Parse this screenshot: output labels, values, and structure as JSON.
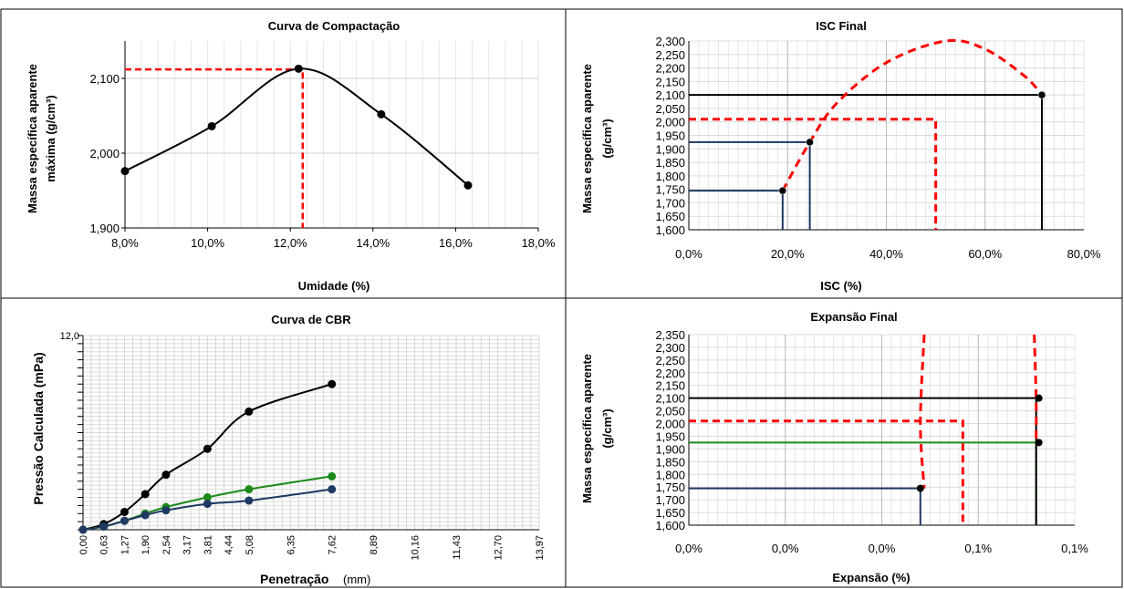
{
  "chart_data": [
    {
      "type": "line",
      "title": "Curva de Compactação",
      "xlabel": "Umidade (%)",
      "ylabel_lines": [
        "Massa específica aparente",
        "máxima  (g/cm³)"
      ],
      "xlim": [
        0.08,
        0.18
      ],
      "ylim": [
        1.9,
        2.15
      ],
      "xticks": [
        "8,0%",
        "10,0%",
        "12,0%",
        "14,0%",
        "16,0%",
        "18,0%"
      ],
      "yticks": [
        "1,900",
        "2,000",
        "2,100"
      ],
      "series": [
        {
          "x": [
            0.08,
            0.101,
            0.122,
            0.142,
            0.163
          ],
          "y": [
            1.976,
            2.036,
            2.113,
            2.052,
            1.957
          ],
          "color": "#000000"
        }
      ],
      "reference": {
        "x": 0.123,
        "y": 2.112,
        "color": "#ff0000"
      }
    },
    {
      "type": "line",
      "title": "ISC Final",
      "xlabel": "ISC (%)",
      "ylabel_lines": [
        "Massa específica  aparente",
        "(g/cm³)"
      ],
      "xlim": [
        0,
        0.8
      ],
      "ylim": [
        1.6,
        2.3
      ],
      "xticks": [
        "0,0%",
        "20,0%",
        "40,0%",
        "60,0%",
        "80,0%"
      ],
      "yticks": [
        "1,600",
        "1,650",
        "1,700",
        "1,750",
        "1,800",
        "1,850",
        "1,900",
        "1,950",
        "2,000",
        "2,050",
        "2,100",
        "2,150",
        "2,200",
        "2,250",
        "2,300"
      ],
      "points": [
        {
          "x": 0.19,
          "y": 1.745,
          "color": "#1f3864"
        },
        {
          "x": 0.245,
          "y": 1.925,
          "color": "#1f3864"
        },
        {
          "x": 0.715,
          "y": 2.1,
          "color": "#000000"
        }
      ],
      "curve": {
        "x": [
          0.19,
          0.245,
          0.3,
          0.4,
          0.52,
          0.6,
          0.68,
          0.715
        ],
        "y": [
          1.745,
          1.925,
          2.07,
          2.22,
          2.3,
          2.27,
          2.17,
          2.1
        ],
        "color": "#ff0000"
      },
      "reference": {
        "x": 0.5,
        "y": 2.01,
        "color": "#ff0000"
      }
    },
    {
      "type": "line",
      "title": "Curva de CBR",
      "xlabel": "Penetração",
      "xlabel_unit": "(mm)",
      "ylabel": "Pressão Calculada  (mPa)",
      "xlim": [
        0,
        13.97
      ],
      "ylim": [
        0,
        12
      ],
      "xticks": [
        "0,00",
        "0,63",
        "1,27",
        "1,90",
        "2,54",
        "3,17",
        "3,81",
        "4,44",
        "5,08",
        "6,35",
        "7,62",
        "8,89",
        "10,16",
        "11,43",
        "12,70",
        "13,97"
      ],
      "x_positions": [
        0,
        0.635,
        1.27,
        1.905,
        2.54,
        3.175,
        3.81,
        4.445,
        5.08,
        6.35,
        7.62,
        8.89,
        10.16,
        11.43,
        12.7,
        13.97
      ],
      "ytick_top": "12,0",
      "series": [
        {
          "x": [
            0,
            0.635,
            1.27,
            1.905,
            2.54,
            3.81,
            5.08,
            7.62
          ],
          "y": [
            0,
            0.35,
            1.1,
            2.2,
            3.4,
            5.0,
            7.3,
            9.0
          ],
          "color": "#000000"
        },
        {
          "x": [
            0,
            0.635,
            1.27,
            1.905,
            2.54,
            3.81,
            5.08,
            7.62
          ],
          "y": [
            0,
            0.2,
            0.55,
            1.0,
            1.4,
            2.0,
            2.5,
            3.3
          ],
          "color": "#1b8a1b"
        },
        {
          "x": [
            0,
            0.635,
            1.27,
            1.905,
            2.54,
            3.81,
            5.08,
            7.62
          ],
          "y": [
            0,
            0.2,
            0.55,
            0.9,
            1.2,
            1.6,
            1.8,
            2.5
          ],
          "color": "#1f3864"
        }
      ]
    },
    {
      "type": "line",
      "title": "Expansão  Final",
      "xlabel": "Expansão  (%)",
      "ylabel_lines": [
        "Massa específica  aparente",
        "(g/cm³)"
      ],
      "xlim": [
        0,
        1
      ],
      "ylim": [
        1.6,
        2.35
      ],
      "xticks": [
        "0,0%",
        "0,0%",
        "0,0%",
        "0,1%",
        "0,1%"
      ],
      "yticks": [
        "1,600",
        "1,650",
        "1,700",
        "1,750",
        "1,800",
        "1,850",
        "1,900",
        "1,950",
        "2,000",
        "2,050",
        "2,100",
        "2,150",
        "2,200",
        "2,250",
        "2,300",
        "2,350"
      ],
      "points": [
        {
          "x": 0.6,
          "y": 1.745,
          "color": "#1f3864"
        },
        {
          "x": 0.9,
          "y": 1.925,
          "color": "#1b8a1b"
        },
        {
          "x": 0.9,
          "y": 2.1,
          "color": "#000000"
        }
      ],
      "curve": {
        "x": [
          0.61,
          0.6,
          0.61,
          0.9,
          0.9,
          0.895
        ],
        "y": [
          2.35,
          2.0,
          1.745,
          1.925,
          2.1,
          2.35
        ],
        "color": "#ff0000"
      },
      "reference": {
        "x": 0.71,
        "y": 2.01,
        "color": "#ff0000"
      }
    }
  ]
}
